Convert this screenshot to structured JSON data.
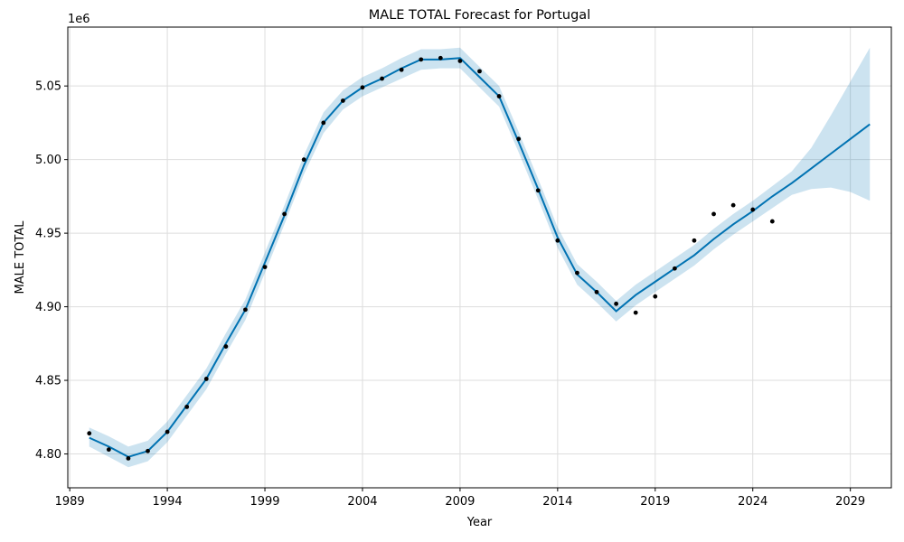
{
  "chart_data": {
    "type": "line",
    "title": "MALE TOTAL Forecast for Portugal",
    "xlabel": "Year",
    "ylabel": "MALE TOTAL",
    "y_offset_label": "1e6",
    "xlim": [
      1988.9,
      2031.1
    ],
    "ylim": [
      4.777,
      5.09
    ],
    "grid": true,
    "x_ticks": [
      1989,
      1994,
      1999,
      2004,
      2009,
      2014,
      2019,
      2024,
      2029
    ],
    "y_ticks": [
      4.8,
      4.85,
      4.9,
      4.95,
      5.0,
      5.05
    ],
    "y_tick_labels": [
      "4.80",
      "4.85",
      "4.90",
      "4.95",
      "5.00",
      "5.05"
    ],
    "colors": {
      "forecast": "#0072b2",
      "band": "#0072b2",
      "actual": "#000000"
    },
    "actual": {
      "x": [
        1990,
        1991,
        1992,
        1993,
        1994,
        1995,
        1996,
        1997,
        1998,
        1999,
        2000,
        2001,
        2002,
        2003,
        2004,
        2005,
        2006,
        2007,
        2008,
        2009,
        2010,
        2011,
        2012,
        2013,
        2014,
        2015,
        2016,
        2017,
        2018,
        2019,
        2020,
        2021,
        2022,
        2023,
        2024,
        2025
      ],
      "y": [
        4.814,
        4.803,
        4.797,
        4.802,
        4.815,
        4.832,
        4.851,
        4.873,
        4.898,
        4.927,
        4.963,
        5.0,
        5.025,
        5.04,
        5.049,
        5.055,
        5.061,
        5.068,
        5.069,
        5.067,
        5.06,
        5.043,
        5.014,
        4.979,
        4.945,
        4.923,
        4.91,
        4.902,
        4.896,
        4.907,
        4.926,
        4.945,
        4.963,
        4.969,
        4.966,
        4.958
      ]
    },
    "forecast": {
      "x": [
        1990,
        1991,
        1992,
        1993,
        1994,
        1995,
        1996,
        1997,
        1998,
        1999,
        2000,
        2001,
        2002,
        2003,
        2004,
        2005,
        2006,
        2007,
        2008,
        2009,
        2010,
        2011,
        2012,
        2013,
        2014,
        2015,
        2016,
        2017,
        2018,
        2019,
        2020,
        2021,
        2022,
        2023,
        2024,
        2025,
        2026,
        2027,
        2028,
        2029,
        2030
      ],
      "yhat": [
        4.811,
        4.805,
        4.798,
        4.802,
        4.815,
        4.833,
        4.851,
        4.875,
        4.898,
        4.93,
        4.962,
        4.996,
        5.025,
        5.04,
        5.049,
        5.055,
        5.062,
        5.068,
        5.068,
        5.069,
        5.056,
        5.043,
        5.012,
        4.98,
        4.947,
        4.922,
        4.91,
        4.897,
        4.908,
        4.917,
        4.926,
        4.935,
        4.946,
        4.956,
        4.965,
        4.975,
        4.984,
        4.994,
        5.004,
        5.014,
        5.024
      ],
      "lower": [
        4.805,
        4.798,
        4.791,
        4.795,
        4.808,
        4.826,
        4.844,
        4.868,
        4.891,
        4.923,
        4.956,
        4.99,
        5.018,
        5.034,
        5.043,
        5.049,
        5.055,
        5.061,
        5.062,
        5.062,
        5.049,
        5.036,
        5.005,
        4.973,
        4.94,
        4.915,
        4.903,
        4.89,
        4.901,
        4.91,
        4.919,
        4.928,
        4.939,
        4.949,
        4.958,
        4.967,
        4.976,
        4.98,
        4.981,
        4.978,
        4.972
      ],
      "upper": [
        4.818,
        4.812,
        4.805,
        4.809,
        4.822,
        4.84,
        4.858,
        4.882,
        4.905,
        4.937,
        4.969,
        5.003,
        5.032,
        5.047,
        5.056,
        5.062,
        5.069,
        5.075,
        5.075,
        5.076,
        5.063,
        5.05,
        5.019,
        4.987,
        4.954,
        4.929,
        4.917,
        4.904,
        4.915,
        4.924,
        4.933,
        4.942,
        4.953,
        4.963,
        4.972,
        4.982,
        4.992,
        5.008,
        5.03,
        5.053,
        5.076
      ]
    }
  }
}
